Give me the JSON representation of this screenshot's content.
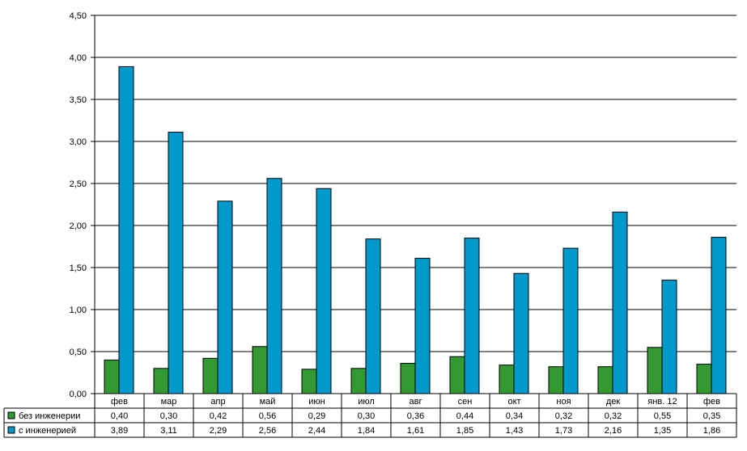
{
  "chart_data": {
    "type": "bar",
    "categories": [
      "фев",
      "мар",
      "апр",
      "май",
      "июн",
      "июл",
      "авг",
      "сен",
      "окт",
      "ноя",
      "дек",
      "янв. 12",
      "фев"
    ],
    "series": [
      {
        "name": "без инженерии",
        "color": "#339933",
        "values": [
          0.4,
          0.3,
          0.42,
          0.56,
          0.29,
          0.3,
          0.36,
          0.44,
          0.34,
          0.32,
          0.32,
          0.55,
          0.35
        ],
        "labels": [
          "0,40",
          "0,30",
          "0,42",
          "0,56",
          "0,29",
          "0,30",
          "0,36",
          "0,44",
          "0,34",
          "0,32",
          "0,32",
          "0,55",
          "0,35"
        ]
      },
      {
        "name": "с инженерией",
        "color": "#0099cc",
        "values": [
          3.89,
          3.11,
          2.29,
          2.56,
          2.44,
          1.84,
          1.61,
          1.85,
          1.43,
          1.73,
          2.16,
          1.35,
          1.86
        ],
        "labels": [
          "3,89",
          "3,11",
          "2,29",
          "2,56",
          "2,44",
          "1,84",
          "1,61",
          "1,85",
          "1,43",
          "1,73",
          "2,16",
          "1,35",
          "1,86"
        ]
      }
    ],
    "ylim": [
      0,
      4.5
    ],
    "yticks": [
      0,
      0.5,
      1.0,
      1.5,
      2.0,
      2.5,
      3.0,
      3.5,
      4.0,
      4.5
    ],
    "ytick_labels": [
      "0,00",
      "0,50",
      "1,00",
      "1,50",
      "2,00",
      "2,50",
      "3,00",
      "3,50",
      "4,00",
      "4,50"
    ],
    "grid": true,
    "data_table": true
  }
}
